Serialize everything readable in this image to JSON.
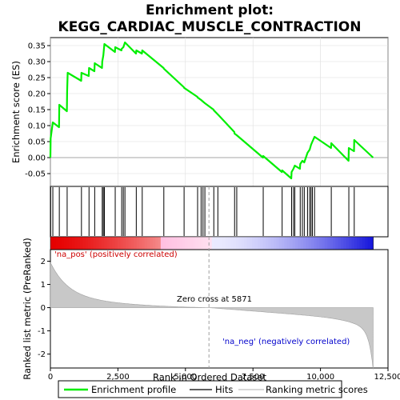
{
  "chart_data": {
    "type": "line",
    "title_line1": "Enrichment plot:",
    "title_line2": "KEGG_CARDIAC_MUSCLE_CONTRACTION",
    "xlabel": "Rank in Ordered Dataset",
    "ylabel_top": "Enrichment score (ES)",
    "ylabel_bottom": "Ranked list metric (PreRanked)",
    "x_range": [
      0,
      12500
    ],
    "x_ticks": [
      0,
      2500,
      5000,
      7500,
      10000,
      12500
    ],
    "x_tick_labels": [
      "0",
      "2,500",
      "5,000",
      "7,500",
      "10,000",
      "12,500"
    ],
    "es_ylim": [
      -0.09,
      0.375
    ],
    "es_ticks": [
      -0.05,
      0.0,
      0.05,
      0.1,
      0.15,
      0.2,
      0.25,
      0.3,
      0.35
    ],
    "es_tick_labels": [
      "-0.05",
      "0.00",
      "0.05",
      "0.10",
      "0.15",
      "0.20",
      "0.25",
      "0.30",
      "0.35"
    ],
    "metric_ylim": [
      -2.6,
      2.5
    ],
    "metric_ticks": [
      -2,
      -1,
      0,
      1,
      2
    ],
    "metric_tick_labels": [
      "-2",
      "-1",
      "0",
      "1",
      "2"
    ],
    "n_genes": 11950,
    "zero_cross": 5871,
    "hits": [
      10,
      90,
      330,
      620,
      1150,
      1430,
      1640,
      1920,
      1960,
      2000,
      2400,
      2640,
      2700,
      2760,
      3180,
      3400,
      4200,
      4950,
      5450,
      5580,
      5650,
      5720,
      6050,
      6200,
      6820,
      6900,
      7880,
      8580,
      8930,
      9000,
      9050,
      9250,
      9330,
      9400,
      9520,
      9600,
      9650,
      9700,
      9780,
      10400,
      11050,
      11250
    ],
    "es_points": [
      [
        0,
        0.0
      ],
      [
        10,
        0.06
      ],
      [
        90,
        0.11
      ],
      [
        320,
        0.095
      ],
      [
        330,
        0.165
      ],
      [
        610,
        0.145
      ],
      [
        620,
        0.205
      ],
      [
        640,
        0.265
      ],
      [
        1140,
        0.24
      ],
      [
        1150,
        0.265
      ],
      [
        1420,
        0.255
      ],
      [
        1430,
        0.28
      ],
      [
        1630,
        0.27
      ],
      [
        1640,
        0.295
      ],
      [
        1910,
        0.28
      ],
      [
        1920,
        0.3
      ],
      [
        1960,
        0.32
      ],
      [
        2000,
        0.355
      ],
      [
        2390,
        0.33
      ],
      [
        2400,
        0.345
      ],
      [
        2630,
        0.335
      ],
      [
        2640,
        0.34
      ],
      [
        2700,
        0.345
      ],
      [
        2760,
        0.36
      ],
      [
        3170,
        0.325
      ],
      [
        3180,
        0.335
      ],
      [
        3390,
        0.325
      ],
      [
        3400,
        0.335
      ],
      [
        4190,
        0.28
      ],
      [
        4200,
        0.278
      ],
      [
        4940,
        0.22
      ],
      [
        4950,
        0.218
      ],
      [
        5440,
        0.19
      ],
      [
        5450,
        0.188
      ],
      [
        5580,
        0.18
      ],
      [
        5650,
        0.175
      ],
      [
        5720,
        0.17
      ],
      [
        6040,
        0.15
      ],
      [
        6050,
        0.148
      ],
      [
        6200,
        0.135
      ],
      [
        6810,
        0.08
      ],
      [
        6820,
        0.075
      ],
      [
        6900,
        0.07
      ],
      [
        7870,
        0.0
      ],
      [
        7880,
        0.005
      ],
      [
        8570,
        -0.045
      ],
      [
        8580,
        -0.04
      ],
      [
        8920,
        -0.065
      ],
      [
        8930,
        -0.045
      ],
      [
        9000,
        -0.035
      ],
      [
        9050,
        -0.025
      ],
      [
        9240,
        -0.035
      ],
      [
        9250,
        -0.02
      ],
      [
        9330,
        -0.01
      ],
      [
        9400,
        -0.015
      ],
      [
        9520,
        0.015
      ],
      [
        9600,
        0.025
      ],
      [
        9650,
        0.04
      ],
      [
        9700,
        0.05
      ],
      [
        9780,
        0.065
      ],
      [
        10390,
        0.03
      ],
      [
        10400,
        0.045
      ],
      [
        11040,
        -0.01
      ],
      [
        11050,
        0.03
      ],
      [
        11240,
        0.02
      ],
      [
        11250,
        0.055
      ],
      [
        11950,
        0.0
      ]
    ],
    "annotations": {
      "pos": "'na_pos' (positively correlated)",
      "neg": "'na_neg' (negatively correlated)",
      "zero": "Zero cross at 5871"
    },
    "legend": {
      "placement": "bottom",
      "items": [
        {
          "label": "Enrichment profile",
          "color": "#00ee00"
        },
        {
          "label": "Hits",
          "color": "#000000"
        },
        {
          "label": "Ranking metric scores",
          "color": "#c0c0c0"
        }
      ]
    },
    "colors": {
      "es_line": "#00ee00",
      "metric_fill": "#c8c8c8",
      "zero_line": "#a0a0a0",
      "pos_text": "#cc0000",
      "neg_text": "#0000cc"
    }
  }
}
